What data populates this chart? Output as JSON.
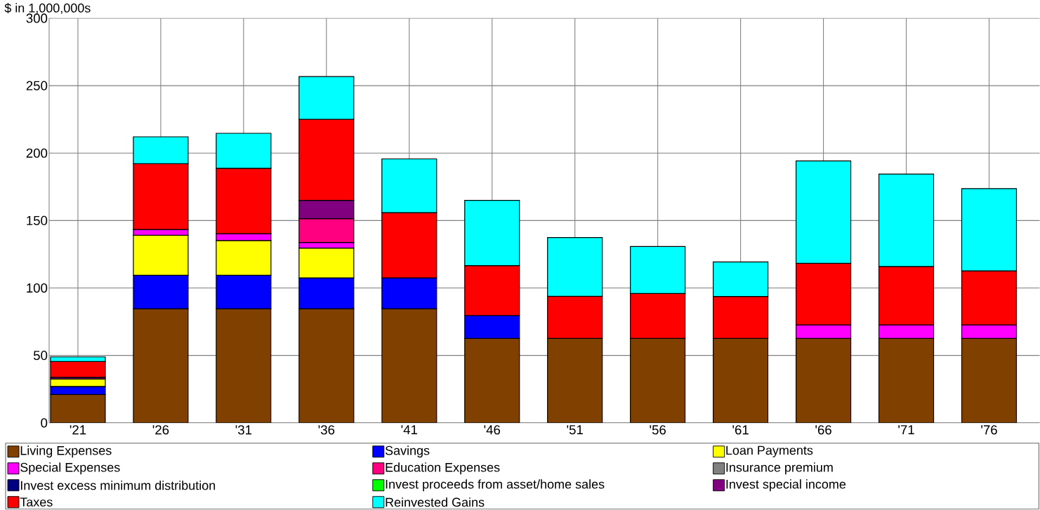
{
  "chart_data": {
    "type": "bar",
    "stacked": true,
    "ylabel": "$ in 1,000,000s",
    "categories": [
      "'21",
      "'26",
      "'31",
      "'36",
      "'41",
      "'46",
      "'51",
      "'56",
      "'61",
      "'66",
      "'71",
      "'76"
    ],
    "ylim": [
      0,
      300
    ],
    "yticks": [
      0,
      50,
      100,
      150,
      200,
      250,
      300
    ],
    "grid": true,
    "legend": "bottom",
    "series": [
      {
        "name": "Living Expenses",
        "color": "#804000",
        "values": [
          21,
          84.6,
          84.6,
          84.6,
          84.6,
          62.6,
          62.6,
          62.6,
          62.6,
          62.6,
          62.6,
          62.6
        ]
      },
      {
        "name": "Savings",
        "color": "#0000ff",
        "values": [
          6,
          24.8,
          24.8,
          22.9,
          22.9,
          17,
          null,
          null,
          null,
          null,
          null,
          null
        ]
      },
      {
        "name": "Loan Payments",
        "color": "#ffff00",
        "values": [
          5.5,
          29.7,
          25.8,
          22.1,
          null,
          null,
          null,
          null,
          null,
          null,
          null,
          null
        ]
      },
      {
        "name": "Special Expenses",
        "color": "#ff00ff",
        "values": [
          null,
          4.3,
          5,
          4.1,
          null,
          null,
          null,
          null,
          null,
          10,
          10,
          10
        ]
      },
      {
        "name": "Education Expenses",
        "color": "#ff0080",
        "values": [
          null,
          null,
          null,
          17.7,
          null,
          null,
          null,
          null,
          null,
          null,
          null,
          null
        ]
      },
      {
        "name": "Insurance premium",
        "color": "#808080",
        "values": [
          null,
          null,
          null,
          null,
          null,
          null,
          null,
          null,
          null,
          null,
          null,
          null
        ]
      },
      {
        "name": "Invest excess minimum distribution",
        "color": "#000080",
        "values": [
          null,
          null,
          null,
          null,
          null,
          null,
          null,
          null,
          null,
          null,
          null,
          null
        ]
      },
      {
        "name": "Invest proceeds from asset/home sales",
        "color": "#00ff00",
        "values": [
          null,
          null,
          null,
          null,
          null,
          null,
          null,
          null,
          null,
          null,
          null,
          null
        ]
      },
      {
        "name": "Invest special income",
        "color": "#800080",
        "values": [
          1.3,
          null,
          null,
          13.6,
          null,
          null,
          null,
          null,
          null,
          null,
          null,
          null
        ]
      },
      {
        "name": "Taxes",
        "color": "#ff0000",
        "values": [
          11.7,
          48.7,
          48.5,
          60.1,
          48.4,
          37,
          31.2,
          33.3,
          31.1,
          45.7,
          43.3,
          40.1
        ]
      },
      {
        "name": "Reinvested Gains",
        "color": "#00ffff",
        "values": [
          3.4,
          20,
          26,
          31.7,
          39.8,
          48.4,
          43.6,
          34.9,
          25.6,
          75.9,
          68.6,
          61
        ]
      }
    ]
  }
}
